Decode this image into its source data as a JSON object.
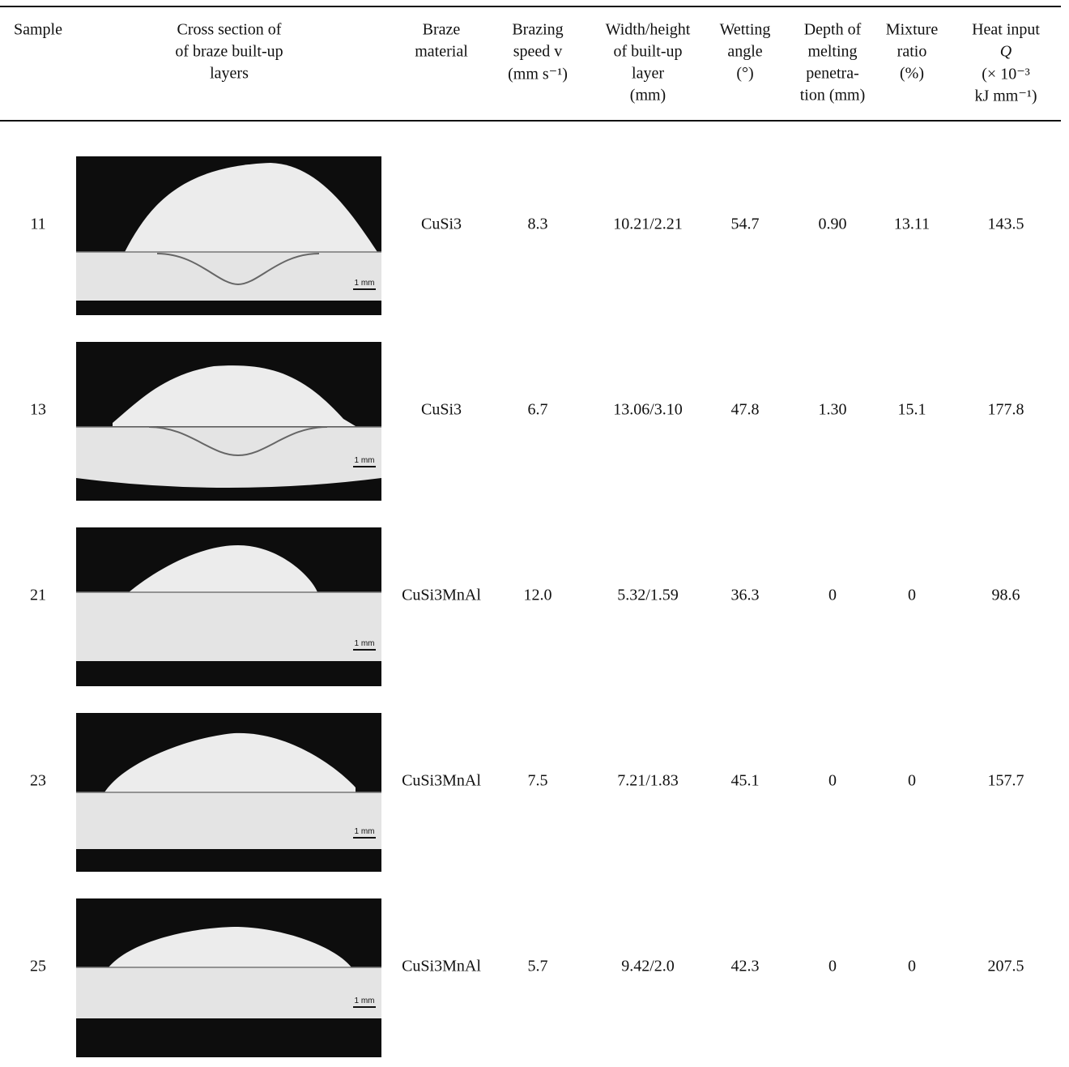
{
  "table": {
    "header": [
      [
        "Sample"
      ],
      [
        "Cross section of",
        "of braze built-up",
        "layers"
      ],
      [
        "Braze",
        "material"
      ],
      [
        "Brazing",
        "speed v",
        "(mm s⁻¹)"
      ],
      [
        "Width/height",
        "of built-up",
        "layer",
        "(mm)"
      ],
      [
        "Wetting",
        "angle",
        "(°)"
      ],
      [
        "Depth of",
        "melting",
        "penetra-",
        "tion (mm)"
      ],
      [
        "Mixture",
        "ratio",
        "(%)"
      ],
      [
        "Heat input",
        "Q",
        "(× 10⁻³",
        "kJ mm⁻¹)"
      ]
    ],
    "rows": [
      {
        "sample": "11",
        "scale_label": "1 mm",
        "cells": [
          "CuSi3",
          "8.3",
          "10.21/2.21",
          "54.7",
          "0.90",
          "13.11",
          "143.5"
        ]
      },
      {
        "sample": "13",
        "scale_label": "1 mm",
        "cells": [
          "CuSi3",
          "6.7",
          "13.06/3.10",
          "47.8",
          "1.30",
          "15.1",
          "177.8"
        ]
      },
      {
        "sample": "21",
        "scale_label": "1 mm",
        "cells": [
          "CuSi3MnAl",
          "12.0",
          "5.32/1.59",
          "36.3",
          "0",
          "0",
          "98.6"
        ]
      },
      {
        "sample": "23",
        "scale_label": "1 mm",
        "cells": [
          "CuSi3MnAl",
          "7.5",
          "7.21/1.83",
          "45.1",
          "0",
          "0",
          "157.7"
        ]
      },
      {
        "sample": "25",
        "scale_label": "1 mm",
        "cells": [
          "CuSi3MnAl",
          "5.7",
          "9.42/2.0",
          "42.3",
          "0",
          "0",
          "207.5"
        ]
      }
    ]
  }
}
